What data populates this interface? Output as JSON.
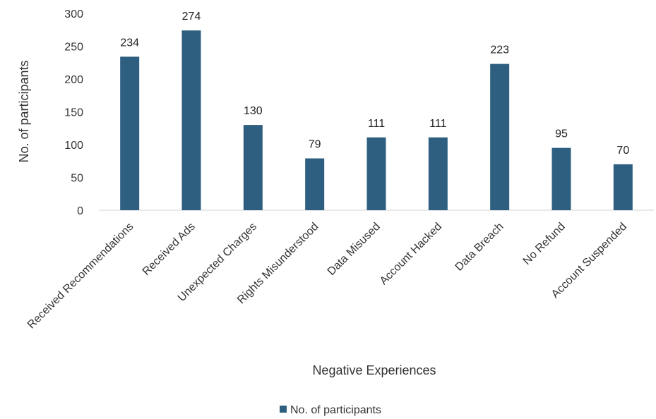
{
  "chart_data": {
    "type": "bar",
    "categories": [
      "Received Recommendations",
      "Received Ads",
      "Unexpected Charges",
      "Rights Misunderstood",
      "Data Misused",
      "Account Hacked",
      "Data Breach",
      "No Refund",
      "Account Suspended"
    ],
    "series": [
      {
        "name": "No. of participants",
        "values": [
          234,
          274,
          130,
          79,
          111,
          111,
          223,
          95,
          70
        ],
        "color": "#2e5f80"
      }
    ],
    "xlabel": "Negative Experiences",
    "ylabel": "No. of participants",
    "ylim": [
      0,
      300
    ],
    "yticks": [
      0,
      50,
      100,
      150,
      200,
      250,
      300
    ],
    "grid": false,
    "legend_position": "bottom",
    "data_labels": true
  }
}
